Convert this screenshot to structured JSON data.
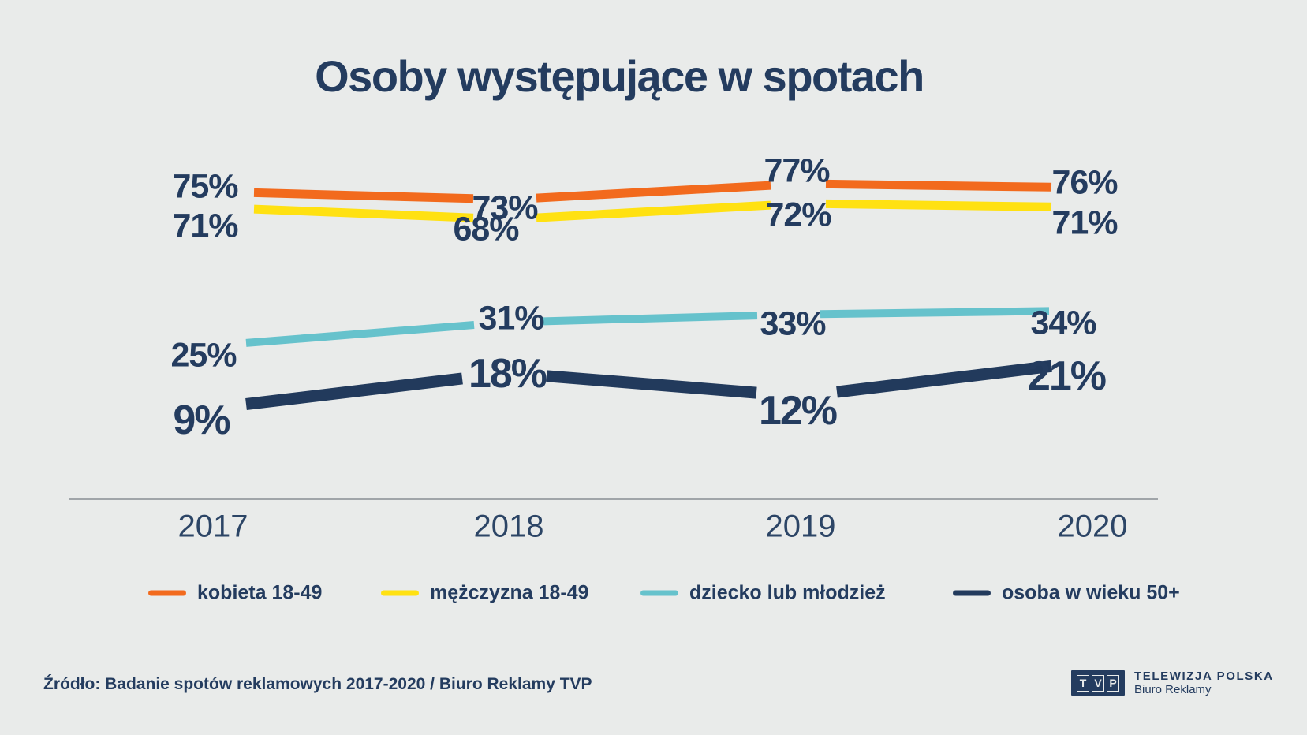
{
  "title": "Osoby występujące w spotach",
  "chart_data": {
    "type": "line",
    "x": [
      "2017",
      "2018",
      "2019",
      "2020"
    ],
    "unit": "%",
    "grid": false,
    "legend_position": "bottom",
    "series": [
      {
        "name": "kobieta 18-49",
        "color": "#F26A1D",
        "values": [
          75,
          73,
          77,
          76
        ],
        "labels": [
          "75%",
          "73%",
          "77%",
          "76%"
        ]
      },
      {
        "name": "mężczyzna 18-49",
        "color": "#FFE112",
        "values": [
          71,
          68,
          72,
          71
        ],
        "labels": [
          "71%",
          "68%",
          "72%",
          "71%"
        ]
      },
      {
        "name": "dziecko lub młodzież",
        "color": "#66C2CC",
        "values": [
          25,
          31,
          33,
          34
        ],
        "labels": [
          "25%",
          "31%",
          "33%",
          "34%"
        ]
      },
      {
        "name": "osoba w wieku 50+",
        "color": "#223A5C",
        "values": [
          9,
          18,
          12,
          21
        ],
        "labels": [
          "9%",
          "18%",
          "12%",
          "21%"
        ]
      }
    ]
  },
  "source": "Źródło: Badanie spotów reklamowych 2017-2020 / Biuro Reklamy TVP",
  "branding": {
    "logo_letters": [
      "T",
      "V",
      "P"
    ],
    "company": "TELEWIZJA POLSKA",
    "department": "Biuro Reklamy"
  },
  "colors": {
    "background": "#E9EBEA",
    "text": "#243C5F",
    "axis_line": "#A0A5A9"
  }
}
